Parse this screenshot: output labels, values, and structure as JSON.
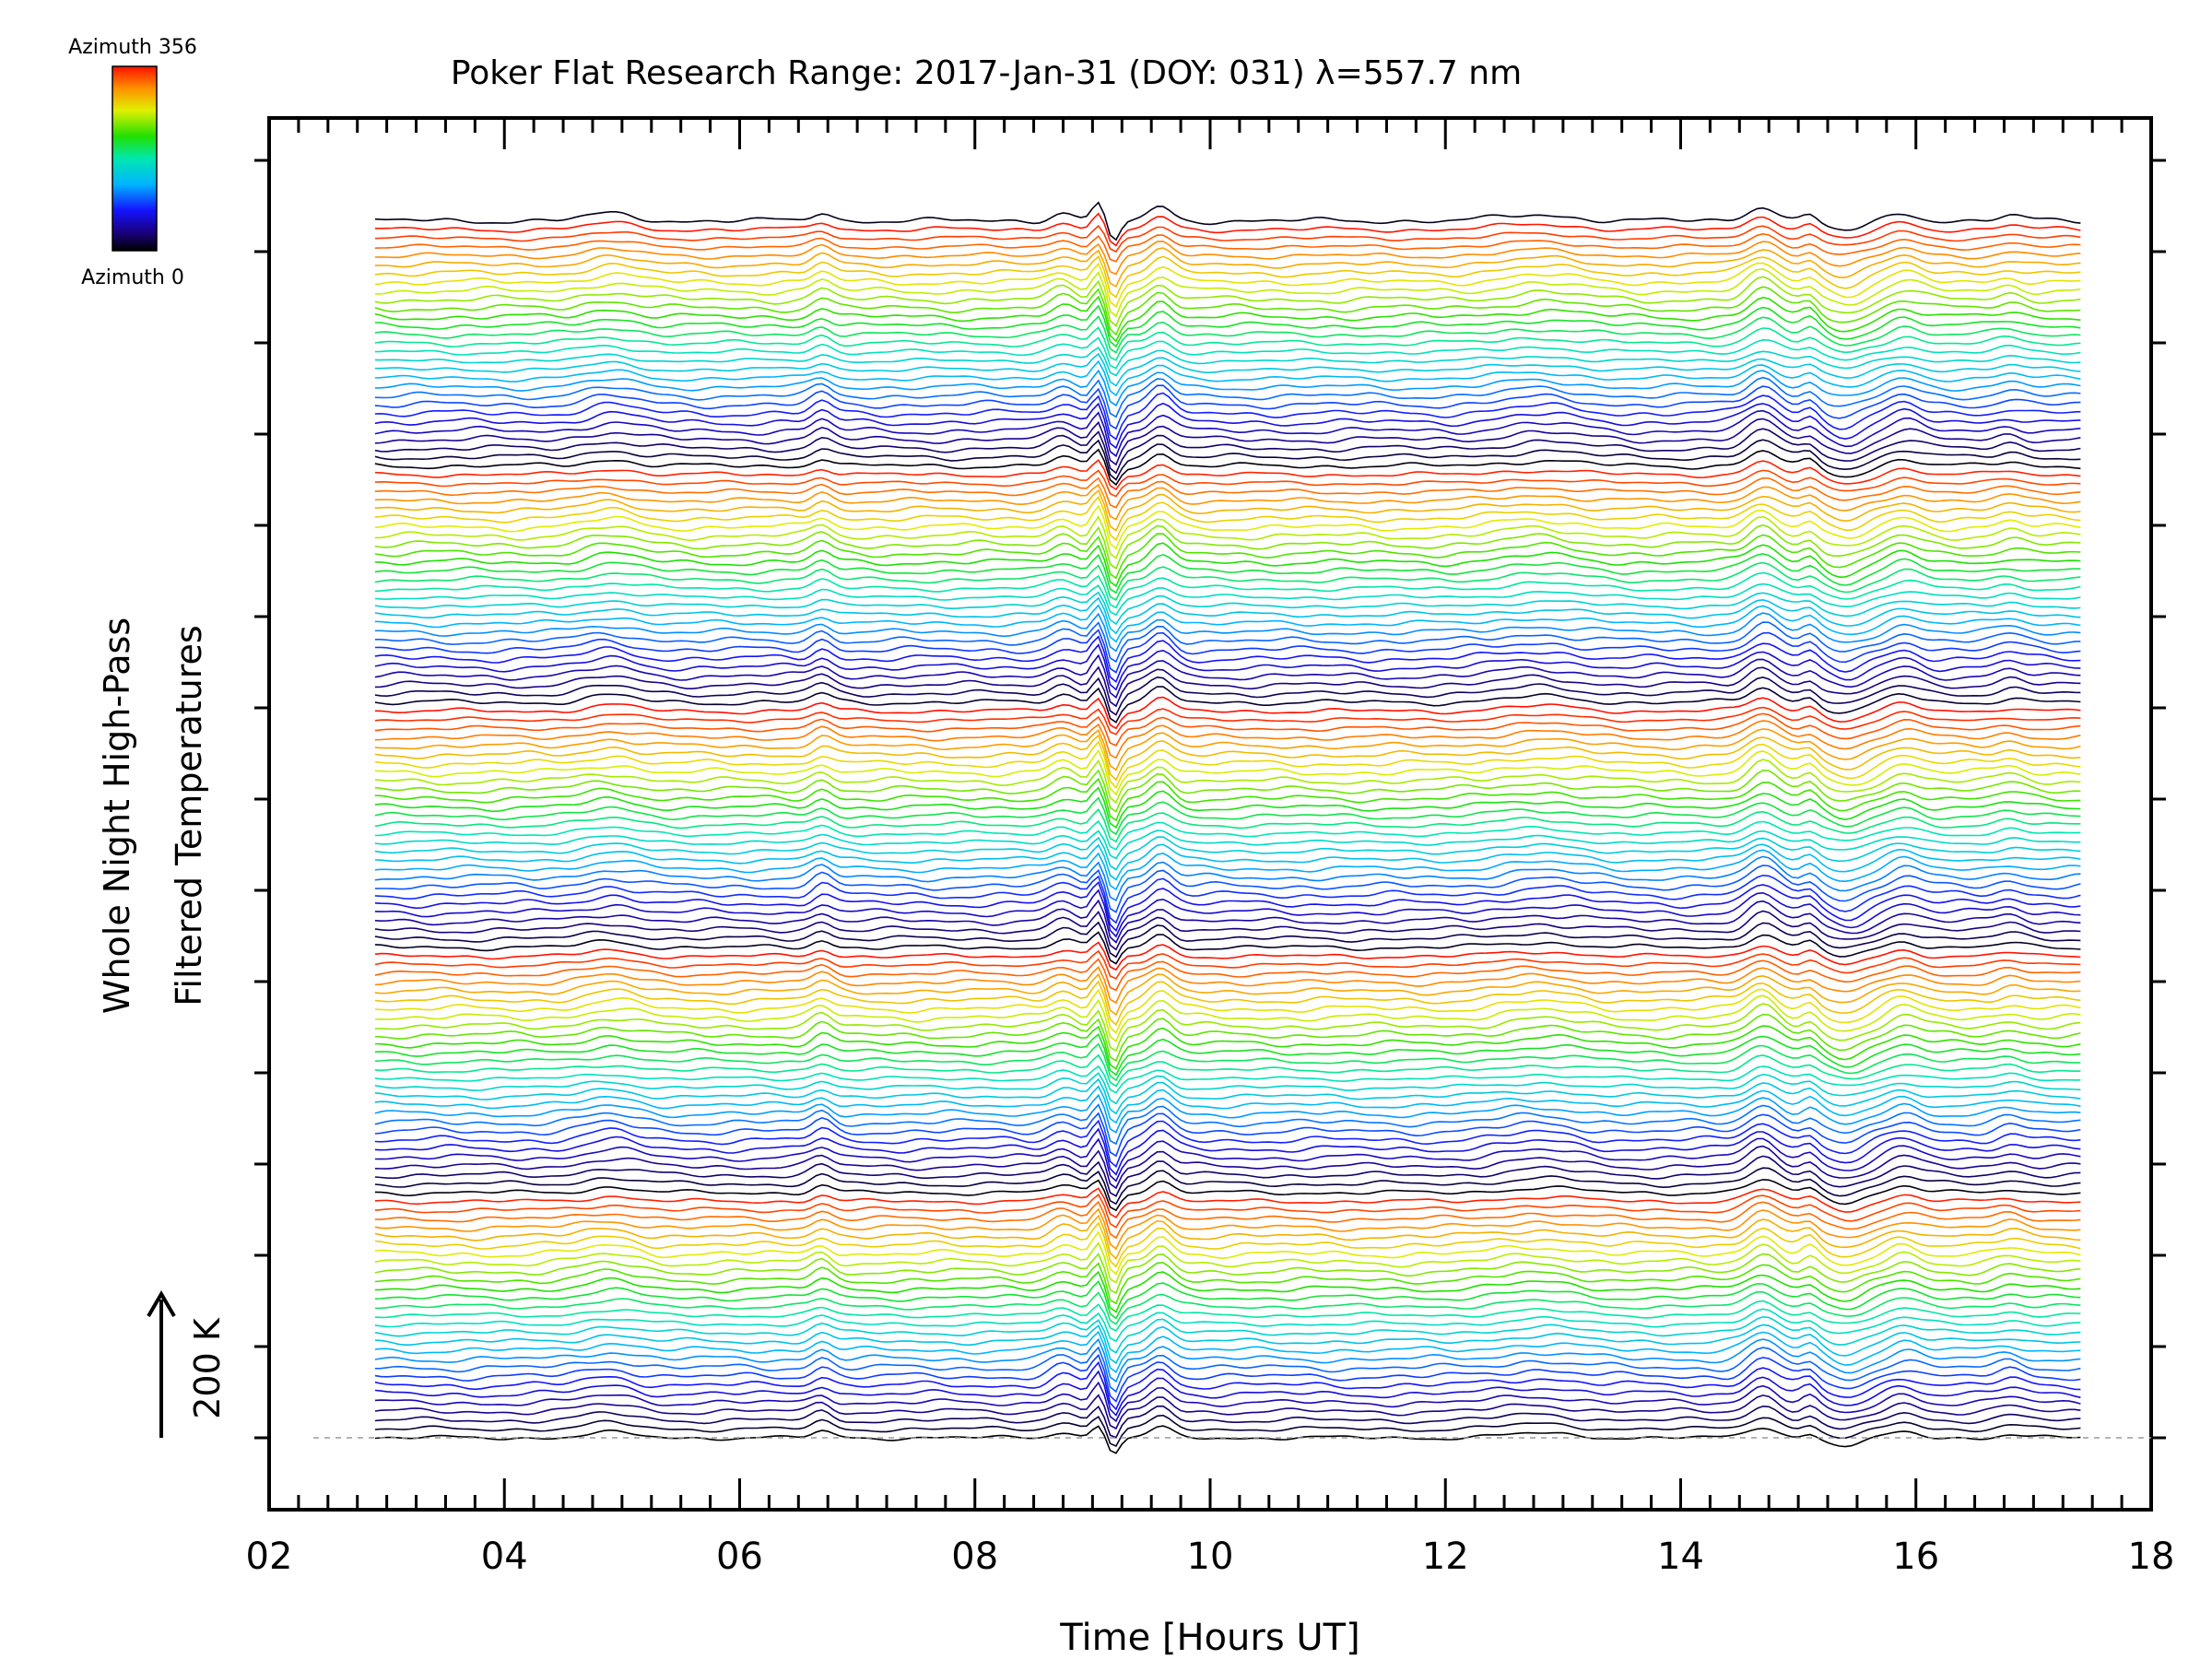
{
  "chart_data": {
    "type": "line",
    "title": "Poker Flat Research Range: 2017-Jan-31 (DOY: 031) λ=557.7 nm",
    "xlabel": "Time [Hours UT]",
    "ylabel": [
      "Whole Night High-Pass",
      "Filtered Temperatures"
    ],
    "xlim": [
      2,
      18
    ],
    "xticks": [
      2,
      4,
      6,
      8,
      10,
      12,
      14,
      16,
      18
    ],
    "xtick_labels": [
      "02",
      "04",
      "06",
      "08",
      "10",
      "12",
      "14",
      "16",
      "18"
    ],
    "x_start": 2.9,
    "x_end": 17.4,
    "scale_bar": {
      "label": "200 K",
      "value_k": 200
    },
    "colorbar": {
      "top_label": "Azimuth 356",
      "bottom_label": "Azimuth 0",
      "min": 0,
      "max": 356,
      "colormap": "rainbow"
    },
    "series_count": 140,
    "azimuth_step": 13,
    "features": [
      {
        "hour": 4.9,
        "amplitude": 0.7,
        "width": 0.2
      },
      {
        "hour": 6.7,
        "amplitude": 0.9,
        "width": 0.08
      },
      {
        "hour": 8.75,
        "amplitude": 0.9,
        "width": 0.1
      },
      {
        "hour": 9.05,
        "amplitude": 1.7,
        "width": 0.05
      },
      {
        "hour": 9.18,
        "amplitude": -2.2,
        "width": 0.05
      },
      {
        "hour": 9.58,
        "amplitude": 1.4,
        "width": 0.09
      },
      {
        "hour": 12.8,
        "amplitude": 0.6,
        "width": 0.3
      },
      {
        "hour": 14.7,
        "amplitude": 1.6,
        "width": 0.12
      },
      {
        "hour": 15.1,
        "amplitude": 0.7,
        "width": 0.06
      },
      {
        "hour": 15.4,
        "amplitude": -1.1,
        "width": 0.15
      },
      {
        "hour": 15.9,
        "amplitude": 0.8,
        "width": 0.12
      },
      {
        "hour": 16.8,
        "amplitude": 0.5,
        "width": 0.1
      }
    ],
    "grid": false,
    "baseline": "dashed"
  }
}
